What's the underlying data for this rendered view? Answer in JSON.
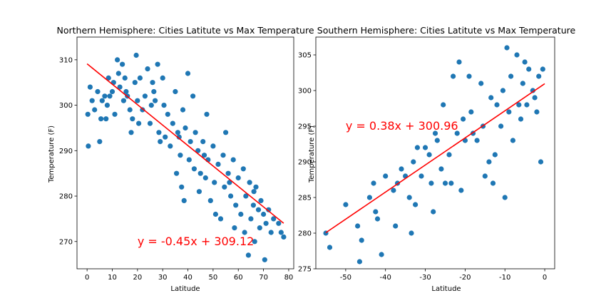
{
  "chart_data": [
    {
      "type": "scatter",
      "title": "Northern Hemisphere: Cities Latitute vs Max Temperature",
      "xlabel": "Latitude",
      "ylabel": "Temperature (F)",
      "xlim": [
        -4,
        82
      ],
      "ylim": [
        264,
        315
      ],
      "xticks": [
        0,
        10,
        20,
        30,
        40,
        50,
        60,
        70,
        80
      ],
      "yticks": [
        270,
        280,
        290,
        300,
        310
      ],
      "grid": false,
      "point_color": "#1f77b4",
      "line_color": "#ff0000",
      "regression": {
        "slope": -0.45,
        "intercept": 309.12,
        "x_range": [
          0,
          78
        ]
      },
      "equation": "y = -0.45x + 309.12",
      "equation_pos": [
        20,
        270
      ],
      "points": [
        [
          0.5,
          291
        ],
        [
          0.3,
          298
        ],
        [
          1.2,
          304
        ],
        [
          2.0,
          301
        ],
        [
          3.0,
          299
        ],
        [
          4.2,
          303
        ],
        [
          5.0,
          292
        ],
        [
          5.5,
          297
        ],
        [
          6.0,
          301
        ],
        [
          7.0,
          302
        ],
        [
          7.5,
          297
        ],
        [
          8.0,
          300
        ],
        [
          9.0,
          302
        ],
        [
          10.0,
          303
        ],
        [
          10.5,
          305
        ],
        [
          11.0,
          298
        ],
        [
          12.0,
          310
        ],
        [
          12.5,
          307
        ],
        [
          13.0,
          304
        ],
        [
          14.0,
          309
        ],
        [
          14.5,
          301
        ],
        [
          15.0,
          306
        ],
        [
          16.0,
          302
        ],
        [
          17.0,
          299
        ],
        [
          17.5,
          294
        ],
        [
          18.0,
          297
        ],
        [
          19.0,
          305
        ],
        [
          19.5,
          311
        ],
        [
          20.0,
          301
        ],
        [
          20.5,
          296
        ],
        [
          21.0,
          306
        ],
        [
          22.0,
          299
        ],
        [
          23.0,
          302
        ],
        [
          24.0,
          308
        ],
        [
          25.0,
          296
        ],
        [
          25.5,
          300
        ],
        [
          26.0,
          305
        ],
        [
          27.0,
          301
        ],
        [
          28.0,
          309
        ],
        [
          28.5,
          294
        ],
        [
          29.0,
          292
        ],
        [
          30.0,
          306
        ],
        [
          30.5,
          300
        ],
        [
          31.0,
          293
        ],
        [
          32.0,
          298
        ],
        [
          33.0,
          291
        ],
        [
          34.0,
          296
        ],
        [
          35.0,
          303
        ],
        [
          35.5,
          285
        ],
        [
          36.0,
          294
        ],
        [
          37.0,
          289
        ],
        [
          37.5,
          282
        ],
        [
          38.0,
          299
        ],
        [
          38.5,
          279
        ],
        [
          39.0,
          295
        ],
        [
          40.0,
          307
        ],
        [
          40.5,
          288
        ],
        [
          41.0,
          292
        ],
        [
          42.0,
          302
        ],
        [
          42.5,
          286
        ],
        [
          43.0,
          294
        ],
        [
          44.0,
          290
        ],
        [
          44.5,
          281
        ],
        [
          45.0,
          285
        ],
        [
          46.0,
          292
        ],
        [
          47.0,
          284
        ],
        [
          47.5,
          298
        ],
        [
          48.0,
          288
        ],
        [
          49.0,
          279
        ],
        [
          50.0,
          291
        ],
        [
          50.5,
          283
        ],
        [
          51.0,
          276
        ],
        [
          52.0,
          287
        ],
        [
          53.0,
          275
        ],
        [
          54.0,
          289
        ],
        [
          54.5,
          282
        ],
        [
          55.0,
          294
        ],
        [
          56.0,
          285
        ],
        [
          57.0,
          280
        ],
        [
          58.0,
          288
        ],
        [
          58.5,
          273
        ],
        [
          59.0,
          278
        ],
        [
          60.0,
          284
        ],
        [
          61.0,
          276
        ],
        [
          62.0,
          286
        ],
        [
          62.5,
          272
        ],
        [
          63.0,
          280
        ],
        [
          64.0,
          267
        ],
        [
          64.5,
          283
        ],
        [
          65.0,
          275
        ],
        [
          66.0,
          278
        ],
        [
          66.5,
          270
        ],
        [
          67.0,
          282
        ],
        [
          68.0,
          277
        ],
        [
          68.5,
          273
        ],
        [
          69.0,
          279
        ],
        [
          70.0,
          276
        ],
        [
          70.5,
          266
        ],
        [
          71.0,
          274
        ],
        [
          72.0,
          277
        ],
        [
          73.0,
          272
        ],
        [
          74.0,
          275
        ],
        [
          76.0,
          274
        ],
        [
          77.0,
          272
        ],
        [
          78.0,
          271
        ],
        [
          26.5,
          303
        ],
        [
          36.5,
          293
        ],
        [
          46.5,
          289
        ],
        [
          56.5,
          283
        ],
        [
          66.2,
          281
        ],
        [
          15.5,
          303
        ],
        [
          8.5,
          306
        ]
      ]
    },
    {
      "type": "scatter",
      "title": "Southern Hemisphere: Cities Latitute vs Max Temperature",
      "xlabel": "Latitude",
      "ylabel": "Temperature (F)",
      "xlim": [
        -57.5,
        2.5
      ],
      "ylim": [
        275,
        307.5
      ],
      "xticks": [
        -50,
        -40,
        -30,
        -20,
        -10,
        0
      ],
      "yticks": [
        275,
        280,
        285,
        290,
        295,
        300,
        305
      ],
      "grid": false,
      "point_color": "#1f77b4",
      "line_color": "#ff0000",
      "regression": {
        "slope": 0.38,
        "intercept": 300.96,
        "x_range": [
          -55,
          0
        ]
      },
      "equation": "y = 0.38x + 300.96",
      "equation_pos": [
        -50,
        295
      ],
      "points": [
        [
          -55,
          280
        ],
        [
          -54,
          278
        ],
        [
          -50,
          284
        ],
        [
          -47,
          281
        ],
        [
          -46.5,
          276
        ],
        [
          -46,
          279
        ],
        [
          -43,
          287
        ],
        [
          -42.5,
          283
        ],
        [
          -42,
          282
        ],
        [
          -41,
          277
        ],
        [
          -40,
          288
        ],
        [
          -38,
          286
        ],
        [
          -37.5,
          281
        ],
        [
          -37,
          287
        ],
        [
          -35,
          288
        ],
        [
          -34,
          285
        ],
        [
          -33.5,
          280
        ],
        [
          -33,
          290
        ],
        [
          -32.5,
          284
        ],
        [
          -32,
          292
        ],
        [
          -31,
          288
        ],
        [
          -30,
          292
        ],
        [
          -29,
          291
        ],
        [
          -28.5,
          287
        ],
        [
          -28,
          283
        ],
        [
          -27,
          293
        ],
        [
          -26,
          289
        ],
        [
          -25.5,
          298
        ],
        [
          -25,
          287
        ],
        [
          -24,
          291
        ],
        [
          -23.5,
          287
        ],
        [
          -23,
          302
        ],
        [
          -22,
          294
        ],
        [
          -21.5,
          304
        ],
        [
          -21,
          286
        ],
        [
          -20.5,
          296
        ],
        [
          -20,
          293
        ],
        [
          -19,
          302
        ],
        [
          -18.5,
          297
        ],
        [
          -18,
          294
        ],
        [
          -17,
          293
        ],
        [
          -16,
          301
        ],
        [
          -15.5,
          295
        ],
        [
          -15,
          288
        ],
        [
          -14,
          290
        ],
        [
          -13.5,
          299
        ],
        [
          -13,
          287
        ],
        [
          -12,
          298
        ],
        [
          -11,
          295
        ],
        [
          -10.5,
          300
        ],
        [
          -10,
          285
        ],
        [
          -9.5,
          306
        ],
        [
          -9,
          297
        ],
        [
          -8.5,
          302
        ],
        [
          -8,
          293
        ],
        [
          -7,
          305
        ],
        [
          -6.5,
          298
        ],
        [
          -6,
          296
        ],
        [
          -5.5,
          301
        ],
        [
          -5,
          304
        ],
        [
          -4.5,
          298
        ],
        [
          -4,
          303
        ],
        [
          -3,
          300
        ],
        [
          -2,
          297
        ],
        [
          -1.5,
          302
        ],
        [
          -1,
          290
        ],
        [
          -0.5,
          303
        ],
        [
          -2.5,
          299
        ],
        [
          -12.5,
          291
        ],
        [
          -27.5,
          294
        ],
        [
          -36,
          289
        ],
        [
          -44,
          285
        ]
      ]
    }
  ]
}
